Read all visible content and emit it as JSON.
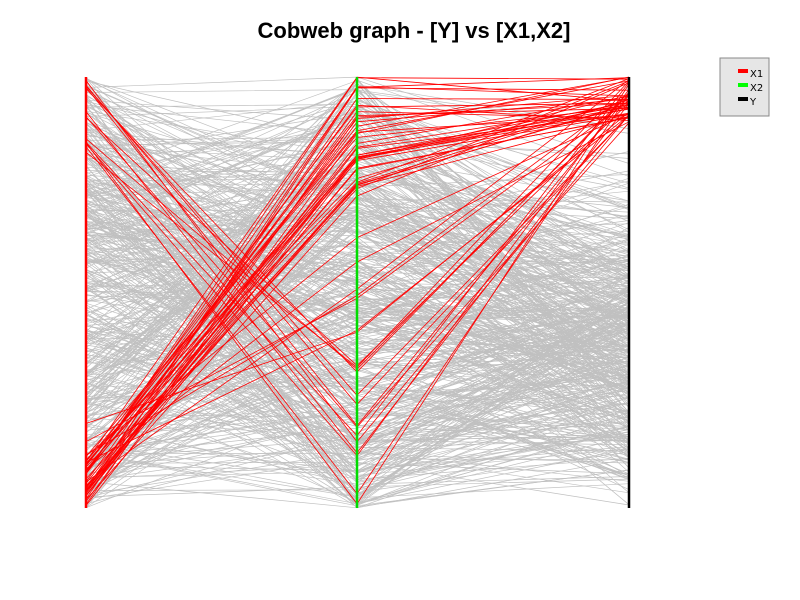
{
  "chart_data": {
    "type": "parallel-coordinates",
    "title": "Cobweb graph - [Y] vs [X1,X2]",
    "axes": [
      {
        "name": "X1",
        "color": "#ff0000"
      },
      {
        "name": "X2",
        "color": "#00dd00"
      },
      {
        "name": "Y",
        "color": "#000000"
      }
    ],
    "legend": {
      "placement": "top-right",
      "entries": [
        {
          "label": "X1",
          "color": "#ff0000"
        },
        {
          "label": "X2",
          "color": "#00ff00"
        },
        {
          "label": "Y",
          "color": "#000000"
        }
      ]
    },
    "line_colors": {
      "selected": "#ff0000",
      "other": "#c0c0c0"
    },
    "grid": false,
    "value_range": [
      0,
      1
    ],
    "selection_rule": "top 10% of Y",
    "gray_line_count": 520,
    "red_line_count": 60,
    "random_seed": 7
  }
}
